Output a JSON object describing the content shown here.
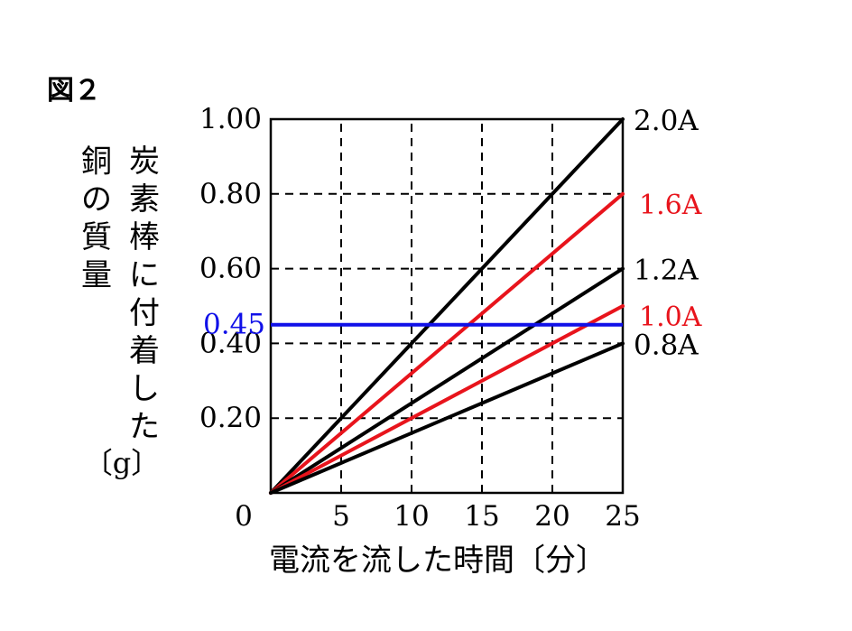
{
  "figure_label": "図２",
  "chart_data": {
    "type": "line",
    "ylabel_lines": [
      "炭素棒に付着した",
      "銅の質量",
      "〔g〕"
    ],
    "ylabel_unit": "〔g〕",
    "xlabel": "電流を流した時間〔分〕",
    "xlim": [
      0,
      25
    ],
    "ylim": [
      0,
      1.0
    ],
    "x_ticks": [
      "0",
      "5",
      "10",
      "15",
      "20",
      "25"
    ],
    "y_ticks": [
      {
        "value": 0.2,
        "label": "0.20"
      },
      {
        "value": 0.4,
        "label": "0.40"
      },
      {
        "value": 0.6,
        "label": "0.60"
      },
      {
        "value": 0.8,
        "label": "0.80"
      },
      {
        "value": 1.0,
        "label": "1.00"
      }
    ],
    "grid": true,
    "grid_style": "dashed",
    "series": [
      {
        "name": "2.0A",
        "color": "#000000",
        "x": [
          0,
          25
        ],
        "y": [
          0,
          1.0
        ]
      },
      {
        "name": "1.6A",
        "color": "#e8141c",
        "x": [
          0,
          25
        ],
        "y": [
          0,
          0.8
        ]
      },
      {
        "name": "1.2A",
        "color": "#000000",
        "x": [
          0,
          25
        ],
        "y": [
          0,
          0.6
        ]
      },
      {
        "name": "1.0A",
        "color": "#e8141c",
        "x": [
          0,
          25
        ],
        "y": [
          0,
          0.5
        ]
      },
      {
        "name": "0.8A",
        "color": "#000000",
        "x": [
          0,
          25
        ],
        "y": [
          0,
          0.4
        ]
      }
    ],
    "reference_line": {
      "label": "0.45",
      "value": 0.45,
      "color": "#1010e8"
    }
  }
}
